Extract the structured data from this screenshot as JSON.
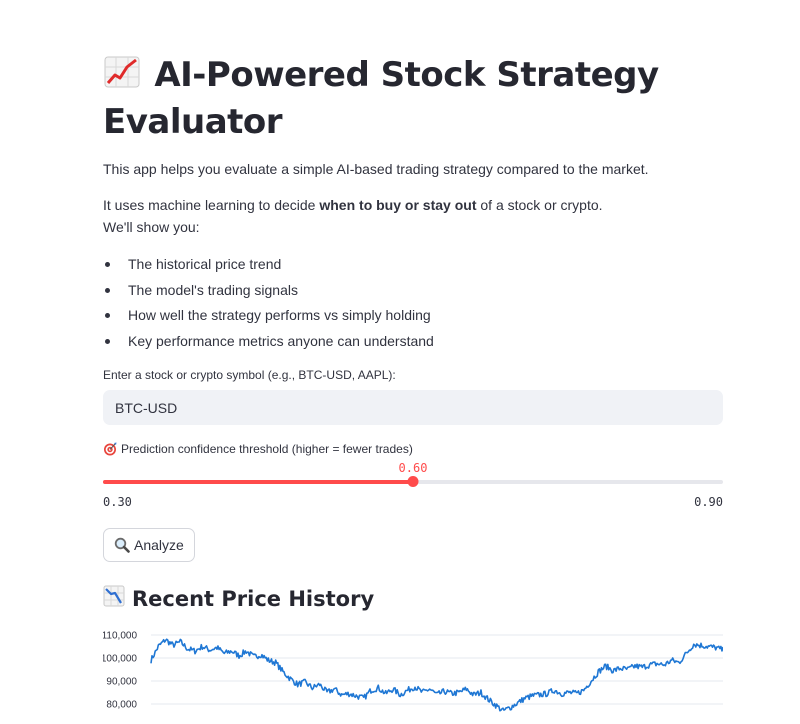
{
  "header": {
    "title": "AI-Powered Stock Strategy Evaluator",
    "title_icon": "chart-increasing-icon"
  },
  "intro": {
    "line1": "This app helps you evaluate a simple AI-based trading strategy compared to the market.",
    "line2_prefix": "It uses machine learning to decide ",
    "line2_bold": "when to buy or stay out",
    "line2_suffix": " of a stock or crypto.",
    "line3": "We'll show you:",
    "bullets": [
      "The historical price trend",
      "The model's trading signals",
      "How well the strategy performs vs simply holding",
      "Key performance metrics anyone can understand"
    ]
  },
  "symbol_input": {
    "label": "Enter a stock or crypto symbol (e.g., BTC-USD, AAPL):",
    "value": "BTC-USD"
  },
  "threshold_slider": {
    "icon": "target-icon",
    "label": "Prediction confidence threshold (higher = fewer trades)",
    "value": 0.6,
    "value_label": "0.60",
    "min": 0.3,
    "max": 0.9,
    "min_label": "0.30",
    "max_label": "0.90",
    "accent_color": "#ff4b4b"
  },
  "analyze_button": {
    "icon": "magnifying-glass-icon",
    "label": "Analyze"
  },
  "price_section": {
    "icon": "chart-decreasing-icon",
    "title": "Recent Price History"
  },
  "chart_data": {
    "type": "line",
    "title": "",
    "xlabel": "",
    "ylabel": "",
    "ylim": [
      74000,
      113000
    ],
    "yticks": [
      "110,000",
      "100,000",
      "90,000",
      "80,000"
    ],
    "ytick_values": [
      110000,
      100000,
      90000,
      80000
    ],
    "grid": true,
    "line_color": "#1f77d4",
    "series": [
      {
        "values": [
          99000,
          105000,
          108000,
          105500,
          107000,
          104000,
          103000,
          105000,
          103500,
          104500,
          102000,
          103000,
          101000,
          103000,
          100500,
          101500,
          99000,
          98000,
          94000,
          91000,
          88500,
          89500,
          87000,
          88500,
          85000,
          86500,
          84000,
          84500,
          83500,
          82500,
          86000,
          87000,
          84500,
          86500,
          84000,
          86000,
          87500,
          85000,
          86500,
          84000,
          85500,
          84500,
          85000,
          86500,
          84000,
          85000,
          82000,
          79500,
          77000,
          78500,
          80500,
          82500,
          83500,
          84000,
          84500,
          86000,
          84500,
          85000,
          84500,
          86000,
          90000,
          94000,
          96500,
          94500,
          95500,
          95000,
          96500,
          96000,
          97000,
          97500,
          97000,
          99000,
          98000,
          102000,
          106000,
          105500,
          105000,
          104500,
          103500
        ]
      }
    ]
  }
}
